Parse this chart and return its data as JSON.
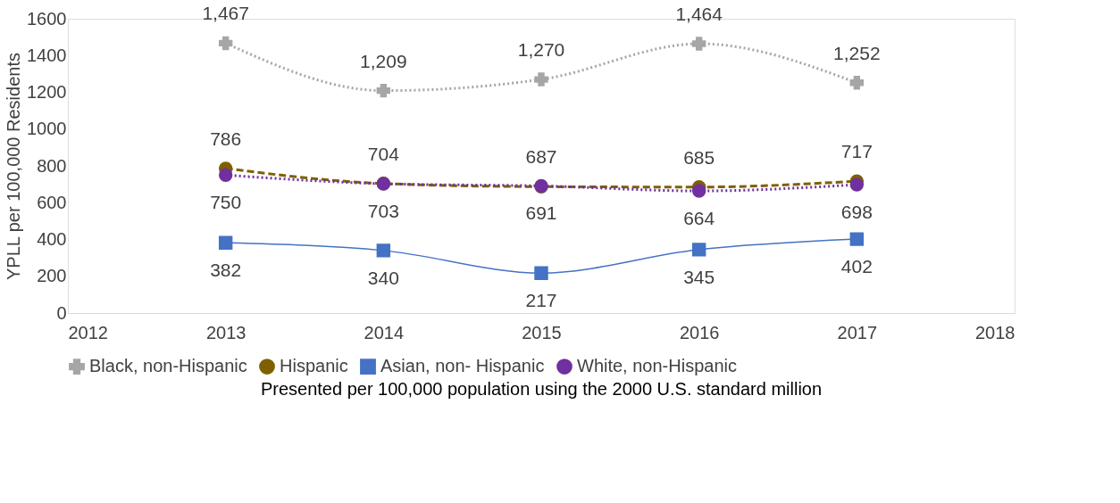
{
  "chart_data": {
    "type": "line",
    "ylabel": "YPLL per 100,000 Residents",
    "x": [
      2013,
      2014,
      2015,
      2016,
      2017
    ],
    "xlim": [
      2012,
      2018
    ],
    "xticks": [
      2012,
      2013,
      2014,
      2015,
      2016,
      2017,
      2018
    ],
    "ylim": [
      0,
      1600
    ],
    "yticks": [
      0,
      200,
      400,
      600,
      800,
      1000,
      1200,
      1400,
      1600
    ],
    "series": [
      {
        "name": "Black, non-Hispanic",
        "color": "#a6a6a6",
        "values": [
          1467,
          1209,
          1270,
          1464,
          1252
        ],
        "value_labels": [
          "1,467",
          "1,209",
          "1,270",
          "1,464",
          "1,252"
        ],
        "marker": "cross",
        "line_style": "dotted"
      },
      {
        "name": "Hispanic",
        "color": "#7f6000",
        "values": [
          786,
          704,
          687,
          685,
          717
        ],
        "value_labels": [
          "786",
          "704",
          "687",
          "685",
          "717"
        ],
        "marker": "circle",
        "line_style": "dashed"
      },
      {
        "name": "Asian, non- Hispanic",
        "color": "#4472c4",
        "values": [
          382,
          340,
          217,
          345,
          402
        ],
        "value_labels": [
          "382",
          "340",
          "217",
          "345",
          "402"
        ],
        "marker": "square",
        "line_style": "solid"
      },
      {
        "name": "White, non-Hispanic",
        "color": "#7030a0",
        "values": [
          750,
          703,
          691,
          664,
          698
        ],
        "value_labels": [
          "750",
          "703",
          "691",
          "664",
          "698"
        ],
        "marker": "circle",
        "line_style": "dotted"
      }
    ],
    "grid": false,
    "legend": "bottom",
    "annotations": [
      "Presented per 100,000 population using the 2000 U.S. standard million"
    ]
  }
}
